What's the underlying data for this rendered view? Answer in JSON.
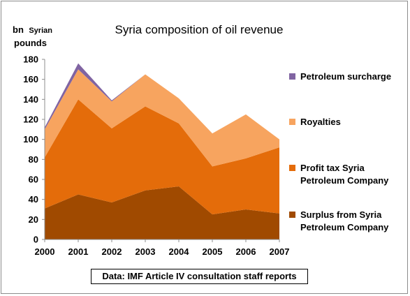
{
  "chart_data": {
    "type": "area",
    "stacked": true,
    "title": "Syria composition of oil revenue",
    "ylabel": {
      "line1_big": "bn",
      "line1_small": "Syrian",
      "line2": "pounds"
    },
    "x": [
      "2000",
      "2001",
      "2002",
      "2003",
      "2004",
      "2005",
      "2006",
      "2007"
    ],
    "ylim": [
      0,
      180
    ],
    "yticks": [
      "0",
      "20",
      "40",
      "60",
      "80",
      "100",
      "120",
      "140",
      "160",
      "180"
    ],
    "grid": false,
    "legend_position": "right",
    "series": [
      {
        "name": "Surplus from Syria Petroleum Company",
        "color": "#a04a00",
        "values": [
          31,
          45,
          37,
          49,
          53,
          25,
          30,
          26
        ]
      },
      {
        "name": "Profit tax Syria Petroleum Company",
        "color": "#e46c0a",
        "values": [
          51,
          95,
          74,
          84,
          63,
          48,
          51,
          66
        ]
      },
      {
        "name": "Royalties",
        "color": "#f7a45f",
        "values": [
          28,
          30,
          27,
          32,
          25,
          33,
          44,
          8
        ]
      },
      {
        "name": "Petroleum surcharge",
        "color": "#8064a2",
        "values": [
          2,
          6,
          1,
          0,
          0,
          0,
          0,
          0
        ]
      }
    ],
    "source_note": "Data: IMF Article IV consultation staff reports"
  }
}
